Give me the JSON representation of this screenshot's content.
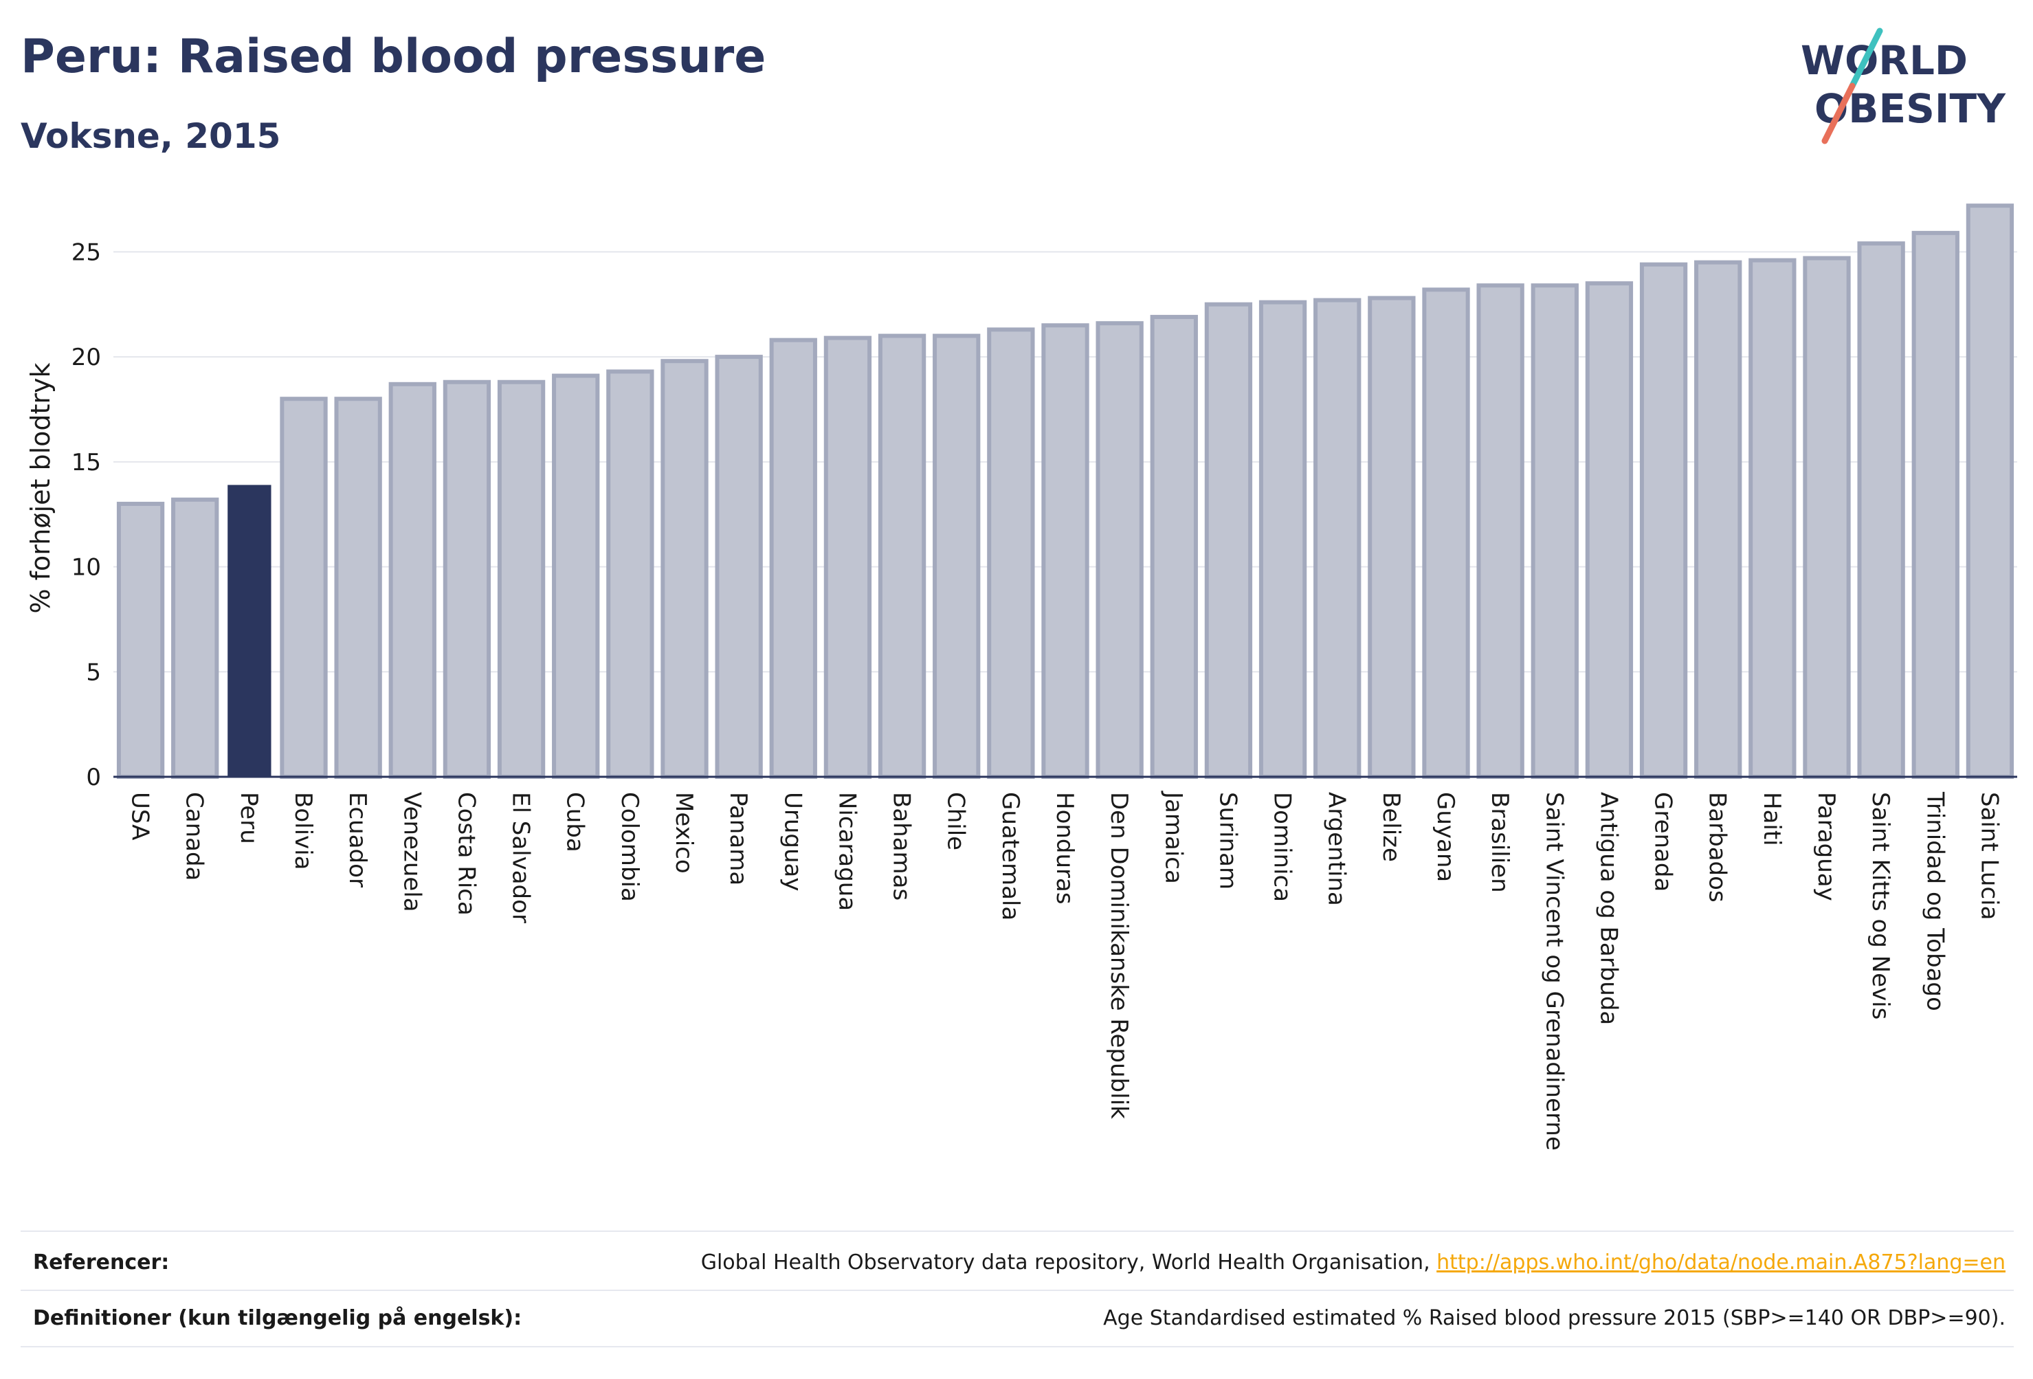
{
  "header": {
    "title": "Peru: Raised blood pressure",
    "subtitle": "Voksne, 2015"
  },
  "logo": {
    "line1": "WORLD",
    "line2": "OBESITY",
    "slash_colors": [
      "#3ec1bf",
      "#e8705a"
    ]
  },
  "colors": {
    "highlight_bar": "#2b365e",
    "other_bar_fill": "#c0c4d1",
    "other_bar_stroke": "#a3a9bd",
    "axis": "#2b365e",
    "grid": "#e4e6ec"
  },
  "chart_data": {
    "type": "bar",
    "ylabel": "% forhøjet blodtryk",
    "ylim": [
      0,
      27.5
    ],
    "yticks": [
      0,
      5,
      10,
      15,
      20,
      25
    ],
    "grid": true,
    "highlight": "Peru",
    "categories": [
      "USA",
      "Canada",
      "Peru",
      "Bolivia",
      "Ecuador",
      "Venezuela",
      "Costa Rica",
      "El Salvador",
      "Cuba",
      "Colombia",
      "Mexico",
      "Panama",
      "Uruguay",
      "Nicaragua",
      "Bahamas",
      "Chile",
      "Guatemala",
      "Honduras",
      "Den Dominikanske Republik",
      "Jamaica",
      "Surinam",
      "Dominica",
      "Argentina",
      "Belize",
      "Guyana",
      "Brasilien",
      "Saint Vincent og Grenadinerne",
      "Antigua og Barbuda",
      "Grenada",
      "Barbados",
      "Haiti",
      "Paraguay",
      "Saint Kitts og Nevis",
      "Trinidad og Tobago",
      "Saint Lucia"
    ],
    "values": [
      13.0,
      13.2,
      13.9,
      18.0,
      18.0,
      18.7,
      18.8,
      18.8,
      19.1,
      19.3,
      19.8,
      20.0,
      20.8,
      20.9,
      21.0,
      21.0,
      21.3,
      21.5,
      21.6,
      21.9,
      22.5,
      22.6,
      22.7,
      22.8,
      23.2,
      23.4,
      23.4,
      23.5,
      24.4,
      24.5,
      24.6,
      24.7,
      25.4,
      25.9,
      27.2
    ]
  },
  "footer": {
    "references_label": "Referencer:",
    "references_text": "Global Health Observatory data repository, World Health Organisation, ",
    "references_link": "http://apps.who.int/gho/data/node.main.A875?lang=en",
    "definitions_label": "Definitioner (kun tilgængelig på engelsk):",
    "definitions_text": "Age Standardised estimated % Raised blood pressure 2015 (SBP>=140 OR DBP>=90)."
  }
}
